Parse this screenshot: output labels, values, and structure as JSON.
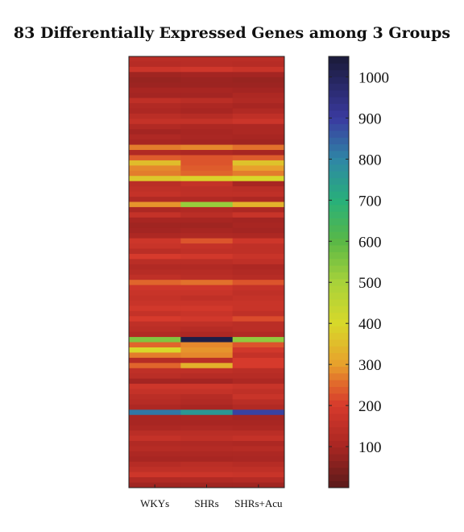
{
  "chart_data": {
    "type": "heatmap",
    "title": "83 Differentially Expressed Genes among 3 Groups",
    "columns": [
      "WKYs",
      "SHRs",
      "SHRs+Acu"
    ],
    "row_count": 83,
    "values": [
      [
        140,
        140,
        140
      ],
      [
        130,
        135,
        130
      ],
      [
        175,
        185,
        170
      ],
      [
        90,
        95,
        95
      ],
      [
        80,
        85,
        80
      ],
      [
        85,
        85,
        85
      ],
      [
        100,
        100,
        95
      ],
      [
        95,
        95,
        110
      ],
      [
        150,
        140,
        120
      ],
      [
        120,
        110,
        100
      ],
      [
        110,
        100,
        120
      ],
      [
        140,
        130,
        150
      ],
      [
        160,
        160,
        175
      ],
      [
        120,
        110,
        110
      ],
      [
        95,
        100,
        110
      ],
      [
        115,
        105,
        100
      ],
      [
        100,
        95,
        90
      ],
      [
        270,
        280,
        260
      ],
      [
        120,
        110,
        100
      ],
      [
        240,
        230,
        240
      ],
      [
        350,
        230,
        360
      ],
      [
        280,
        240,
        300
      ],
      [
        270,
        250,
        270
      ],
      [
        370,
        390,
        400
      ],
      [
        140,
        160,
        100
      ],
      [
        150,
        145,
        140
      ],
      [
        160,
        150,
        150
      ],
      [
        120,
        120,
        110
      ],
      [
        290,
        520,
        330
      ],
      [
        110,
        120,
        110
      ],
      [
        160,
        140,
        170
      ],
      [
        100,
        100,
        95
      ],
      [
        90,
        90,
        100
      ],
      [
        95,
        100,
        95
      ],
      [
        110,
        115,
        110
      ],
      [
        180,
        230,
        180
      ],
      [
        170,
        160,
        150
      ],
      [
        140,
        150,
        150
      ],
      [
        200,
        190,
        170
      ],
      [
        140,
        140,
        150
      ],
      [
        120,
        120,
        110
      ],
      [
        130,
        130,
        120
      ],
      [
        150,
        140,
        130
      ],
      [
        250,
        260,
        230
      ],
      [
        180,
        180,
        160
      ],
      [
        170,
        170,
        150
      ],
      [
        160,
        150,
        160
      ],
      [
        170,
        170,
        170
      ],
      [
        190,
        190,
        170
      ],
      [
        160,
        170,
        150
      ],
      [
        200,
        190,
        220
      ],
      [
        150,
        150,
        140
      ],
      [
        140,
        130,
        140
      ],
      [
        120,
        110,
        120
      ],
      [
        550,
        1030,
        530
      ],
      [
        250,
        280,
        230
      ],
      [
        400,
        290,
        190
      ],
      [
        270,
        280,
        160
      ],
      [
        130,
        140,
        200
      ],
      [
        250,
        330,
        200
      ],
      [
        150,
        150,
        140
      ],
      [
        140,
        130,
        130
      ],
      [
        95,
        95,
        110
      ],
      [
        180,
        180,
        170
      ],
      [
        160,
        160,
        150
      ],
      [
        140,
        130,
        170
      ],
      [
        130,
        120,
        140
      ],
      [
        110,
        100,
        120
      ],
      [
        820,
        760,
        890
      ],
      [
        100,
        105,
        95
      ],
      [
        100,
        100,
        100
      ],
      [
        110,
        115,
        110
      ],
      [
        140,
        140,
        140
      ],
      [
        160,
        150,
        160
      ],
      [
        120,
        115,
        110
      ],
      [
        130,
        125,
        130
      ],
      [
        110,
        110,
        110
      ],
      [
        100,
        100,
        105
      ],
      [
        130,
        140,
        130
      ],
      [
        150,
        150,
        150
      ],
      [
        180,
        175,
        170
      ],
      [
        120,
        120,
        125
      ],
      [
        90,
        90,
        90
      ]
    ],
    "colorbar": {
      "min": 0,
      "max": 1050,
      "ticks": [
        100,
        200,
        300,
        400,
        500,
        600,
        700,
        800,
        900,
        1000
      ]
    },
    "colormap": [
      [
        0,
        "#5a1a1a"
      ],
      [
        100,
        "#a82622"
      ],
      [
        200,
        "#d63a2c"
      ],
      [
        250,
        "#e0652c"
      ],
      [
        300,
        "#e8a02c"
      ],
      [
        400,
        "#d8d82a"
      ],
      [
        500,
        "#a8d23a"
      ],
      [
        600,
        "#5ab846"
      ],
      [
        700,
        "#28b07a"
      ],
      [
        800,
        "#2f86a6"
      ],
      [
        900,
        "#3a3aa0"
      ],
      [
        1050,
        "#1a1a38"
      ]
    ]
  }
}
